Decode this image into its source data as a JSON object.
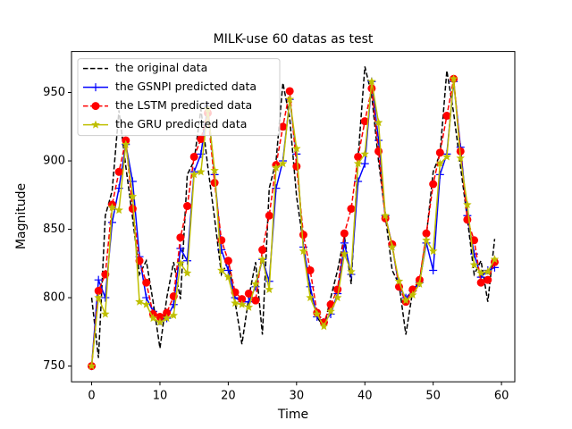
{
  "chart_data": {
    "type": "line",
    "title": "MILK-use 60 datas as test",
    "x_label": "Time",
    "y_label": "Magnitude",
    "x": [
      0,
      1,
      2,
      3,
      4,
      5,
      6,
      7,
      8,
      9,
      10,
      11,
      12,
      13,
      14,
      15,
      16,
      17,
      18,
      19,
      20,
      21,
      22,
      23,
      24,
      25,
      26,
      27,
      28,
      29,
      30,
      31,
      32,
      33,
      34,
      35,
      36,
      37,
      38,
      39,
      40,
      41,
      42,
      43,
      44,
      45,
      46,
      47,
      48,
      49,
      50,
      51,
      52,
      53,
      54,
      55,
      56,
      57,
      58,
      59
    ],
    "xlim": [
      -2.95,
      61.95
    ],
    "xticks": [
      0,
      10,
      20,
      30,
      40,
      50,
      60
    ],
    "ylim": [
      738.5,
      980
    ],
    "yticks": [
      750,
      800,
      850,
      900,
      950
    ],
    "legend": "upper left",
    "series": [
      {
        "name": "the original data",
        "color": "#000000",
        "linestyle": "dashed",
        "marker": "none",
        "values": [
          800,
          756,
          860,
          878,
          937,
          896,
          858,
          817,
          827,
          797,
          763,
          800,
          826,
          799,
          890,
          900,
          938,
          896,
          858,
          817,
          827,
          797,
          766,
          800,
          826,
          773,
          880,
          900,
          957,
          931,
          874,
          839,
          804,
          786,
          778,
          800,
          820,
          845,
          810,
          902,
          969,
          948,
          900,
          860,
          820,
          810,
          773,
          805,
          812,
          845,
          892,
          905,
          966,
          935,
          896,
          858,
          817,
          827,
          797,
          843
        ]
      },
      {
        "name": "the GSNPI predicted data",
        "color": "#0000ff",
        "linestyle": "solid",
        "marker": "plus",
        "values": [
          750,
          813,
          800,
          855,
          880,
          912,
          885,
          830,
          800,
          790,
          783,
          785,
          795,
          836,
          827,
          892,
          905,
          940,
          890,
          835,
          820,
          800,
          797,
          797,
          808,
          828,
          812,
          880,
          900,
          945,
          905,
          837,
          808,
          786,
          782,
          788,
          803,
          840,
          817,
          885,
          898,
          958,
          915,
          860,
          838,
          808,
          800,
          805,
          811,
          840,
          820,
          890,
          905,
          958,
          910,
          860,
          832,
          815,
          820,
          822
        ]
      },
      {
        "name": "the LSTM predicted data",
        "color": "#ff0000",
        "linestyle": "dashed",
        "marker": "circle",
        "values": [
          750,
          805,
          817,
          868,
          892,
          915,
          865,
          827,
          811,
          788,
          786,
          789,
          801,
          844,
          867,
          903,
          916,
          935,
          884,
          842,
          827,
          804,
          799,
          803,
          798,
          835,
          860,
          897,
          925,
          951,
          896,
          846,
          820,
          789,
          782,
          795,
          806,
          847,
          865,
          903,
          929,
          953,
          907,
          858,
          839,
          808,
          797,
          806,
          813,
          847,
          883,
          906,
          933,
          960,
          907,
          857,
          842,
          811,
          813,
          826
        ]
      },
      {
        "name": "the GRU predicted data",
        "color": "#bfbf00",
        "linestyle": "solid",
        "marker": "star",
        "values": [
          750,
          800,
          788,
          866,
          864,
          912,
          874,
          797,
          795,
          785,
          782,
          785,
          787,
          825,
          818,
          890,
          892,
          938,
          893,
          820,
          815,
          796,
          795,
          793,
          810,
          828,
          806,
          895,
          898,
          945,
          909,
          834,
          800,
          788,
          779,
          790,
          800,
          832,
          819,
          898,
          905,
          958,
          928,
          860,
          837,
          812,
          798,
          802,
          810,
          842,
          834,
          898,
          903,
          960,
          902,
          868,
          824,
          818,
          819,
          828
        ]
      }
    ]
  }
}
